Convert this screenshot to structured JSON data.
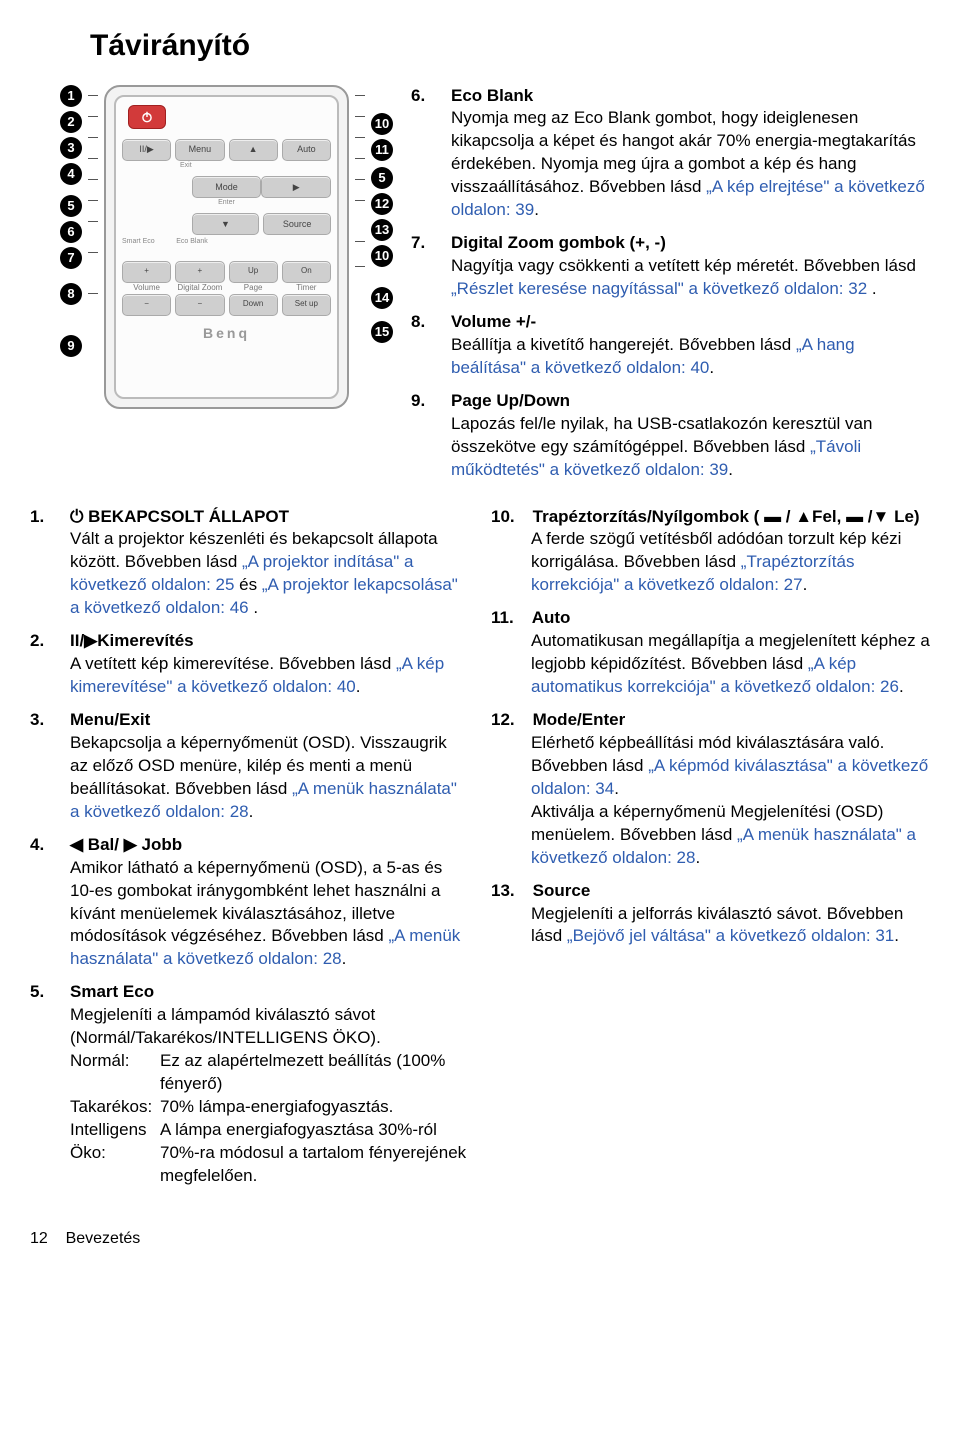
{
  "title": "Távirányító",
  "footer_page": "12",
  "footer_section": "Bevezetés",
  "brand": "Benq",
  "remote": {
    "row1": {
      "pause": "II/▶",
      "menu": "Menu",
      "up": "▲",
      "auto": "Auto"
    },
    "exit": "Exit",
    "row2": {
      "left": "◀",
      "mode": "Mode",
      "right": "▶"
    },
    "enter": "Enter",
    "row3": {
      "down": "▼",
      "source": "Source"
    },
    "eco1": "Smart Eco",
    "eco2": "Eco Blank",
    "grid": {
      "vplus": "+",
      "zplus": "+",
      "up": "Up",
      "on": "On",
      "vol": "Volume",
      "dz": "Digital Zoom",
      "page": "Page",
      "timer": "Timer",
      "vminus": "−",
      "zminus": "−",
      "down": "Down",
      "setup": "Set up"
    }
  },
  "left_items": [
    {
      "num": "1.",
      "title": "⏻ BEKAPCSOLT ÁLLAPOT",
      "body_pre": "Vált a projektor készenléti és bekapcsolt állapota között. Bővebben lásd ",
      "link1": "„A projektor indítása\" a következő oldalon: 25",
      "body_mid": " és ",
      "link2": "„A projektor lekapcsolása\" a következő oldalon: 46",
      "body_post": " ."
    },
    {
      "num": "2.",
      "title": "II/▶Kimerevítés",
      "body_pre": "A vetített kép kimerevítése. Bővebben lásd ",
      "link1": "„A kép kimerevítése\" a következő oldalon: 40",
      "body_post": "."
    },
    {
      "num": "3.",
      "title": "Menu/Exit",
      "body_pre": "Bekapcsolja a képernyőmenüt (OSD). Visszaugrik az előző OSD menüre, kilép és menti a menü beállításokat. Bővebben lásd ",
      "link1": "„A menük használata\" a következő oldalon: 28",
      "body_post": "."
    },
    {
      "num": "4.",
      "title": "◀ Bal/ ▶ Jobb",
      "body_pre": "Amikor látható a képernyőmenü (OSD), a 5-as és 10-es gombokat iránygombként lehet használni a kívánt menüelemek kiválasztásához, illetve módosítások végzéséhez. Bővebben lásd ",
      "link1": "„A menük használata\" a következő oldalon: 28",
      "body_post": "."
    },
    {
      "num": "5.",
      "title": "Smart Eco",
      "body_pre": "Megjeleníti a lámpamód kiválasztó sávot (Normál/Takarékos/INTELLIGENS ÖKO).",
      "defs": [
        {
          "term": "Normál:",
          "def": "Ez az alapértelmezett beállítás (100% fényerő)"
        },
        {
          "term": "Takarékos:",
          "def": "70% lámpa-energiafogyasztás."
        },
        {
          "term": "Intelligens Öko:",
          "def": "A lámpa energiafogyasztása 30%-ról 70%-ra módosul a tartalom fényerejének megfelelően."
        }
      ]
    }
  ],
  "right_items": [
    {
      "num": "6.",
      "title": "Eco Blank",
      "body_pre": "Nyomja meg az Eco Blank gombot, hogy ideiglenesen kikapcsolja a képet és hangot akár 70% energia-megtakarítás érdekében. Nyomja meg újra a gombot a kép és hang visszaállításához. Bővebben lásd ",
      "link1": "„A kép elrejtése\" a következő oldalon: 39",
      "body_post": "."
    },
    {
      "num": "7.",
      "title": "Digital Zoom gombok (+, -)",
      "body_pre": "Nagyítja vagy csökkenti a vetített kép méretét. Bővebben lásd ",
      "link1": "„Részlet keresése nagyítással\" a következő oldalon: 32",
      "body_post": " ."
    },
    {
      "num": "8.",
      "title": "Volume +/-",
      "body_pre": "Beállítja a kivetítő hangerejét. Bővebben lásd ",
      "link1": "„A hang beálítása\" a következő oldalon: 40",
      "body_post": "."
    },
    {
      "num": "9.",
      "title": "Page Up/Down",
      "body_pre": "Lapozás fel/le nyilak, ha USB-csatlakozón keresztül van összekötve egy számítógéppel. Bővebben lásd ",
      "link1": "„Távoli működtetés\" a következő oldalon: 39",
      "body_post": "."
    },
    {
      "num": "10.",
      "title": "Trapéztorzítás/Nyílgombok ( ▬ / ▲Fel,  ▬ /▼ Le)",
      "body_pre": "A ferde szögű vetítésből adódóan torzult kép kézi korrigálása. Bővebben lásd ",
      "link1": "„Trapéztorzítás korrekciója\" a következő oldalon: 27",
      "body_post": "."
    },
    {
      "num": "11.",
      "title": "Auto",
      "body_pre": "Automatikusan megállapítja a megjelenített képhez a legjobb képidőzítést. Bővebben lásd ",
      "link1": "„A kép automatikus korrekciója\" a következő oldalon: 26",
      "body_post": "."
    },
    {
      "num": "12.",
      "title": "Mode/Enter",
      "body_pre": "Elérhető képbeállítási mód kiválasztására való. Bővebben lásd ",
      "link1": "„A képmód kiválasztása\" a következő oldalon: 34",
      "body_mid": ".\nAktiválja a képernyőmenü Megjelenítési (OSD) menüelem. Bővebben lásd ",
      "link2": "„A menük használata\" a következő oldalon: 28",
      "body_post": "."
    },
    {
      "num": "13.",
      "title": "Source",
      "body_pre": "Megjeleníti a jelforrás kiválasztó sávot. Bővebben lásd ",
      "link1": "„Bejövő jel váltása\" a következő oldalon: 31",
      "body_post": "."
    }
  ]
}
